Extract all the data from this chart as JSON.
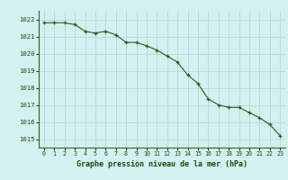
{
  "x": [
    0,
    1,
    2,
    3,
    4,
    5,
    6,
    7,
    8,
    9,
    10,
    11,
    12,
    13,
    14,
    15,
    16,
    17,
    18,
    19,
    20,
    21,
    22,
    23
  ],
  "y": [
    1021.8,
    1021.8,
    1021.8,
    1021.7,
    1021.3,
    1021.2,
    1021.3,
    1021.1,
    1020.65,
    1020.65,
    1020.45,
    1020.2,
    1019.85,
    1019.5,
    1018.75,
    1018.25,
    1017.35,
    1017.0,
    1016.85,
    1016.85,
    1016.55,
    1016.25,
    1015.85,
    1015.2
  ],
  "line_color": "#2d5a1b",
  "marker_color": "#2d5a1b",
  "bg_color": "#d4f0f0",
  "grid_color": "#aadddd",
  "xlabel": "Graphe pression niveau de la mer (hPa)",
  "xlabel_color": "#1a4a0a",
  "tick_color": "#1a4a0a",
  "axis_line_color": "#2d6a1b",
  "ylim_min": 1014.5,
  "ylim_max": 1022.5,
  "xlim_min": -0.5,
  "xlim_max": 23.5,
  "yticks": [
    1015,
    1016,
    1017,
    1018,
    1019,
    1020,
    1021,
    1022
  ],
  "xticks": [
    0,
    1,
    2,
    3,
    4,
    5,
    6,
    7,
    8,
    9,
    10,
    11,
    12,
    13,
    14,
    15,
    16,
    17,
    18,
    19,
    20,
    21,
    22,
    23
  ]
}
